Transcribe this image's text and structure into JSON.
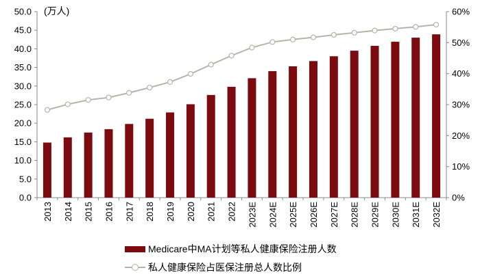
{
  "chart_data": {
    "type": "bar+line",
    "unit_label": "(万人)",
    "categories": [
      "2013",
      "2014",
      "2015",
      "2016",
      "2017",
      "2018",
      "2019",
      "2020",
      "2021",
      "2022",
      "2023E",
      "2024E",
      "2025E",
      "2026E",
      "2027E",
      "2028E",
      "2029E",
      "2030E",
      "2031E",
      "2032E"
    ],
    "series": [
      {
        "name": "Medicare中MA计划等私人健康保险注册人数",
        "type": "bar",
        "axis": "left",
        "color": "#7b0b0f",
        "values": [
          14.8,
          16.2,
          17.5,
          18.4,
          19.8,
          21.2,
          22.9,
          25.1,
          27.6,
          29.8,
          32.1,
          34.0,
          35.3,
          36.7,
          38.0,
          39.5,
          40.8,
          41.9,
          43.0,
          43.9
        ]
      },
      {
        "name": "私人健康保险占医保注册总人数比例",
        "type": "line",
        "axis": "right",
        "color": "#b3b4a8",
        "values": [
          28.3,
          30.1,
          31.5,
          32.3,
          33.8,
          35.5,
          37.3,
          39.9,
          42.9,
          45.8,
          48.4,
          50.2,
          51.0,
          51.7,
          52.5,
          53.2,
          53.9,
          54.5,
          55.1,
          55.8
        ]
      }
    ],
    "y_left": {
      "min": 0,
      "max": 50,
      "ticks": [
        "0.0",
        "5.0",
        "10.0",
        "15.0",
        "20.0",
        "25.0",
        "30.0",
        "35.0",
        "40.0",
        "45.0",
        "50.0"
      ]
    },
    "y_right": {
      "min": 0,
      "max": 60,
      "ticks": [
        "0%",
        "10%",
        "20%",
        "30%",
        "40%",
        "50%",
        "60%"
      ]
    },
    "grid": false,
    "legend_position": "bottom"
  }
}
